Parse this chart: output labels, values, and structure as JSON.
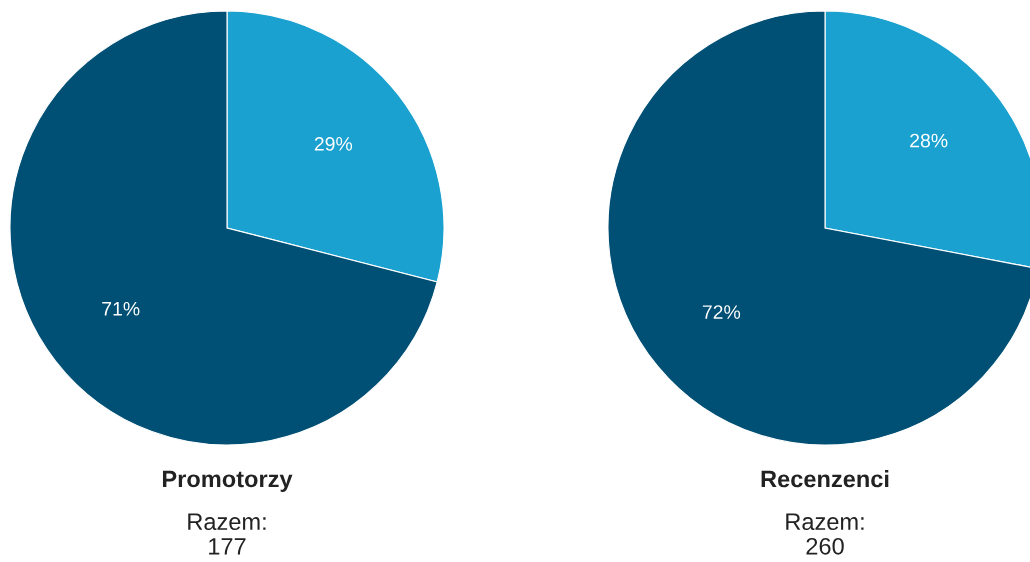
{
  "chart_data": [
    {
      "type": "pie",
      "title": "Promotorzy",
      "annotations": [
        "Razem:\n177"
      ],
      "categories": [
        null,
        null
      ],
      "values": [
        29,
        71
      ],
      "colors": [
        "#1aa1cf",
        "#004f74"
      ],
      "value_labels": [
        "29%",
        "71%"
      ]
    },
    {
      "type": "pie",
      "title": "Recenzenci",
      "annotations": [
        "Razem:\n260"
      ],
      "categories": [
        null,
        null
      ],
      "values": [
        28,
        72
      ],
      "colors": [
        "#1aa1cf",
        "#004f74"
      ],
      "value_labels": [
        "28%",
        "72%"
      ]
    }
  ]
}
